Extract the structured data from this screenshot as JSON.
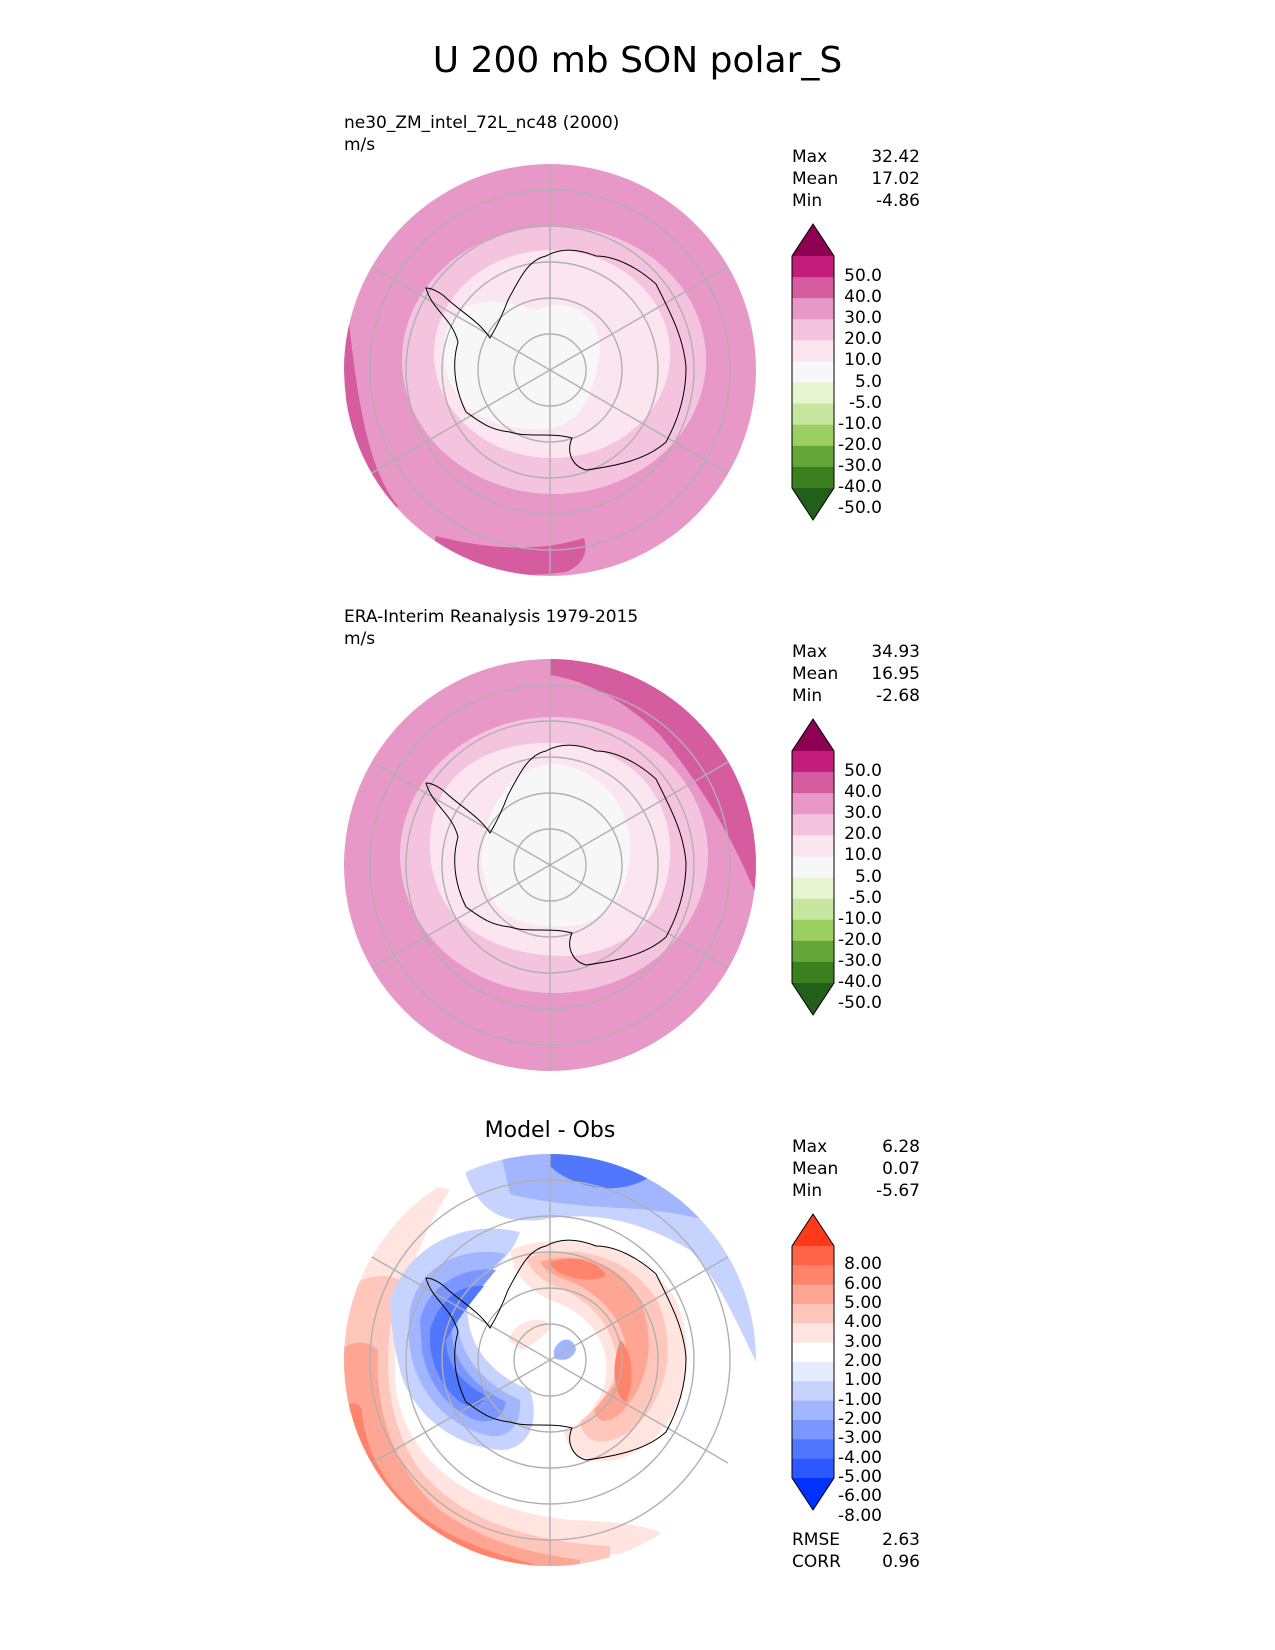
{
  "figure_title": "U 200 mb SON polar_S",
  "colors": {
    "cmap_main": [
      "#225f1a",
      "#3a801f",
      "#64a637",
      "#9bcf60",
      "#c7e7a0",
      "#e6f4d0",
      "#f7f7f7",
      "#fbe6f0",
      "#f4c4df",
      "#e898c6",
      "#d55c9f",
      "#c41c7d",
      "#8e0152"
    ],
    "cmap_diff": [
      "#0031ff",
      "#2b59ff",
      "#5277ff",
      "#7b97ff",
      "#a2b5ff",
      "#c7d3ff",
      "#e6ecff",
      "#ffffff",
      "#ffe4df",
      "#ffc6bb",
      "#ffa593",
      "#ff846b",
      "#ff6447",
      "#ff3a1c"
    ],
    "map_fill_m1": "#f4c4df",
    "map_fill_m2": "#f4c4df",
    "grid": "#b0b0b0",
    "coast": "#000000"
  },
  "chart_data": [
    {
      "type": "heatmap",
      "projection": "south-polar-stereographic",
      "title_line1": "ne30_ZM_intel_72L_nc48 (2000)",
      "title_line2": "m/s",
      "variable": "U",
      "units": "m/s",
      "stats": {
        "Max": "32.42",
        "Mean": "17.02",
        "Min": "-4.86"
      },
      "levels_labels": [
        "50.0",
        "40.0",
        "30.0",
        "20.0",
        "10.0",
        "5.0",
        "-5.0",
        "-10.0",
        "-20.0",
        "-30.0",
        "-40.0",
        "-50.0"
      ],
      "bands_m_s": [
        [
          -5,
          5
        ],
        [
          5,
          10
        ],
        [
          10,
          20
        ],
        [
          20,
          30
        ]
      ]
    },
    {
      "type": "heatmap",
      "projection": "south-polar-stereographic",
      "title_line1": "ERA-Interim Reanalysis 1979-2015",
      "title_line2": "m/s",
      "variable": "U",
      "units": "m/s",
      "stats": {
        "Max": "34.93",
        "Mean": "16.95",
        "Min": "-2.68"
      },
      "levels_labels": [
        "50.0",
        "40.0",
        "30.0",
        "20.0",
        "10.0",
        "5.0",
        "-5.0",
        "-10.0",
        "-20.0",
        "-30.0",
        "-40.0",
        "-50.0"
      ],
      "bands_m_s": [
        [
          -5,
          5
        ],
        [
          5,
          10
        ],
        [
          10,
          20
        ],
        [
          20,
          30
        ]
      ]
    },
    {
      "type": "heatmap",
      "projection": "south-polar-stereographic",
      "title": "Model - Obs",
      "units": "m/s",
      "stats": {
        "Max": "6.28",
        "Mean": "0.07",
        "Min": "-5.67"
      },
      "metrics": {
        "RMSE": "2.63",
        "CORR": "0.96"
      },
      "levels_labels": [
        "8.00",
        "6.00",
        "5.00",
        "4.00",
        "3.00",
        "2.00",
        "1.00",
        "-1.00",
        "-2.00",
        "-3.00",
        "-4.00",
        "-5.00",
        "-6.00",
        "-8.00"
      ]
    }
  ]
}
